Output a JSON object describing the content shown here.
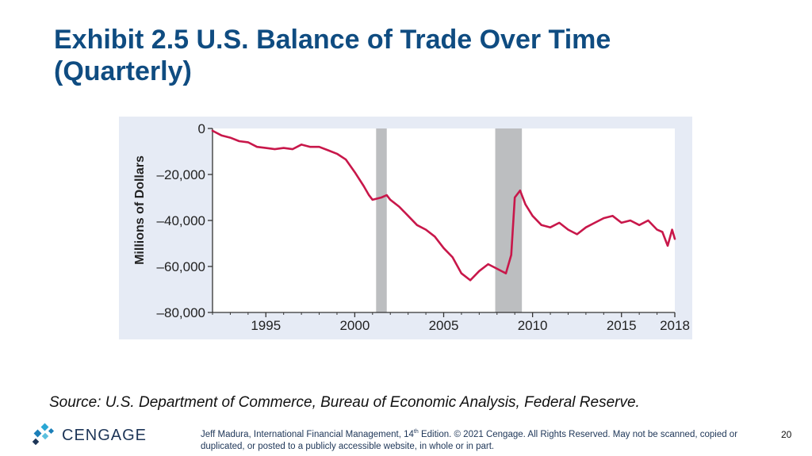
{
  "slide": {
    "title_line1": "Exhibit 2.5 U.S. Balance of Trade Over Time",
    "title_line2": "(Quarterly)",
    "source": "Source: U.S. Department of Commerce, Bureau of Economic Analysis, Federal Reserve.",
    "footer": {
      "author_prefix": "Jeff Madura, International Financial Management, 14",
      "edition_sup": "th",
      "text_rest": " Edition. © 2021 Cengage. All Rights Reserved. May not be scanned, copied or duplicated, or posted to a publicly accessible website, in whole or in part."
    },
    "logo_text": "CENGAGE",
    "page_number": "20"
  },
  "colors": {
    "title": "#0f4c81",
    "chart_bg": "#e6ebf5",
    "plot_bg": "#ffffff",
    "series": "#c8174a",
    "recession": "#bcbec0"
  },
  "chart_data": {
    "type": "line",
    "title": "",
    "xlabel": "",
    "ylabel": "Millions of Dollars",
    "xlim": [
      1992,
      2018
    ],
    "ylim": [
      -80000,
      0
    ],
    "x_ticks": [
      1995,
      2000,
      2005,
      2010,
      2015,
      2018
    ],
    "x_tick_labels": [
      "1995",
      "2000",
      "2005",
      "2010",
      "2015",
      "2018"
    ],
    "y_ticks": [
      0,
      -20000,
      -40000,
      -60000,
      -80000
    ],
    "y_tick_labels": [
      "0",
      "–20,000",
      "–40,000",
      "–60,000",
      "–80,000"
    ],
    "grid": false,
    "shaded_periods": [
      {
        "start": 2001.2,
        "end": 2001.8
      },
      {
        "start": 2007.9,
        "end": 2009.4
      }
    ],
    "series": [
      {
        "values": [
          [
            1992.0,
            -1000
          ],
          [
            1992.5,
            -3000
          ],
          [
            1993.0,
            -4000
          ],
          [
            1993.5,
            -5500
          ],
          [
            1994.0,
            -6000
          ],
          [
            1994.5,
            -8000
          ],
          [
            1995.0,
            -8500
          ],
          [
            1995.5,
            -9000
          ],
          [
            1996.0,
            -8500
          ],
          [
            1996.5,
            -9000
          ],
          [
            1997.0,
            -7000
          ],
          [
            1997.5,
            -8000
          ],
          [
            1998.0,
            -8000
          ],
          [
            1998.5,
            -9500
          ],
          [
            1999.0,
            -11000
          ],
          [
            1999.5,
            -13500
          ],
          [
            2000.0,
            -19000
          ],
          [
            2000.5,
            -25000
          ],
          [
            2000.8,
            -29000
          ],
          [
            2001.0,
            -31000
          ],
          [
            2001.5,
            -30000
          ],
          [
            2001.8,
            -29000
          ],
          [
            2002.0,
            -31000
          ],
          [
            2002.5,
            -34000
          ],
          [
            2003.0,
            -38000
          ],
          [
            2003.5,
            -42000
          ],
          [
            2004.0,
            -44000
          ],
          [
            2004.5,
            -47000
          ],
          [
            2005.0,
            -52000
          ],
          [
            2005.5,
            -56000
          ],
          [
            2006.0,
            -63000
          ],
          [
            2006.5,
            -66000
          ],
          [
            2007.0,
            -62000
          ],
          [
            2007.5,
            -59000
          ],
          [
            2008.0,
            -61000
          ],
          [
            2008.5,
            -63000
          ],
          [
            2008.8,
            -55000
          ],
          [
            2009.0,
            -30000
          ],
          [
            2009.3,
            -27000
          ],
          [
            2009.6,
            -33000
          ],
          [
            2010.0,
            -38000
          ],
          [
            2010.5,
            -42000
          ],
          [
            2011.0,
            -43000
          ],
          [
            2011.5,
            -41000
          ],
          [
            2012.0,
            -44000
          ],
          [
            2012.5,
            -46000
          ],
          [
            2013.0,
            -43000
          ],
          [
            2013.5,
            -41000
          ],
          [
            2014.0,
            -39000
          ],
          [
            2014.5,
            -38000
          ],
          [
            2015.0,
            -41000
          ],
          [
            2015.5,
            -40000
          ],
          [
            2016.0,
            -42000
          ],
          [
            2016.5,
            -40000
          ],
          [
            2017.0,
            -44000
          ],
          [
            2017.3,
            -45000
          ],
          [
            2017.6,
            -51000
          ],
          [
            2017.85,
            -44000
          ],
          [
            2018.0,
            -48000
          ]
        ]
      }
    ]
  }
}
